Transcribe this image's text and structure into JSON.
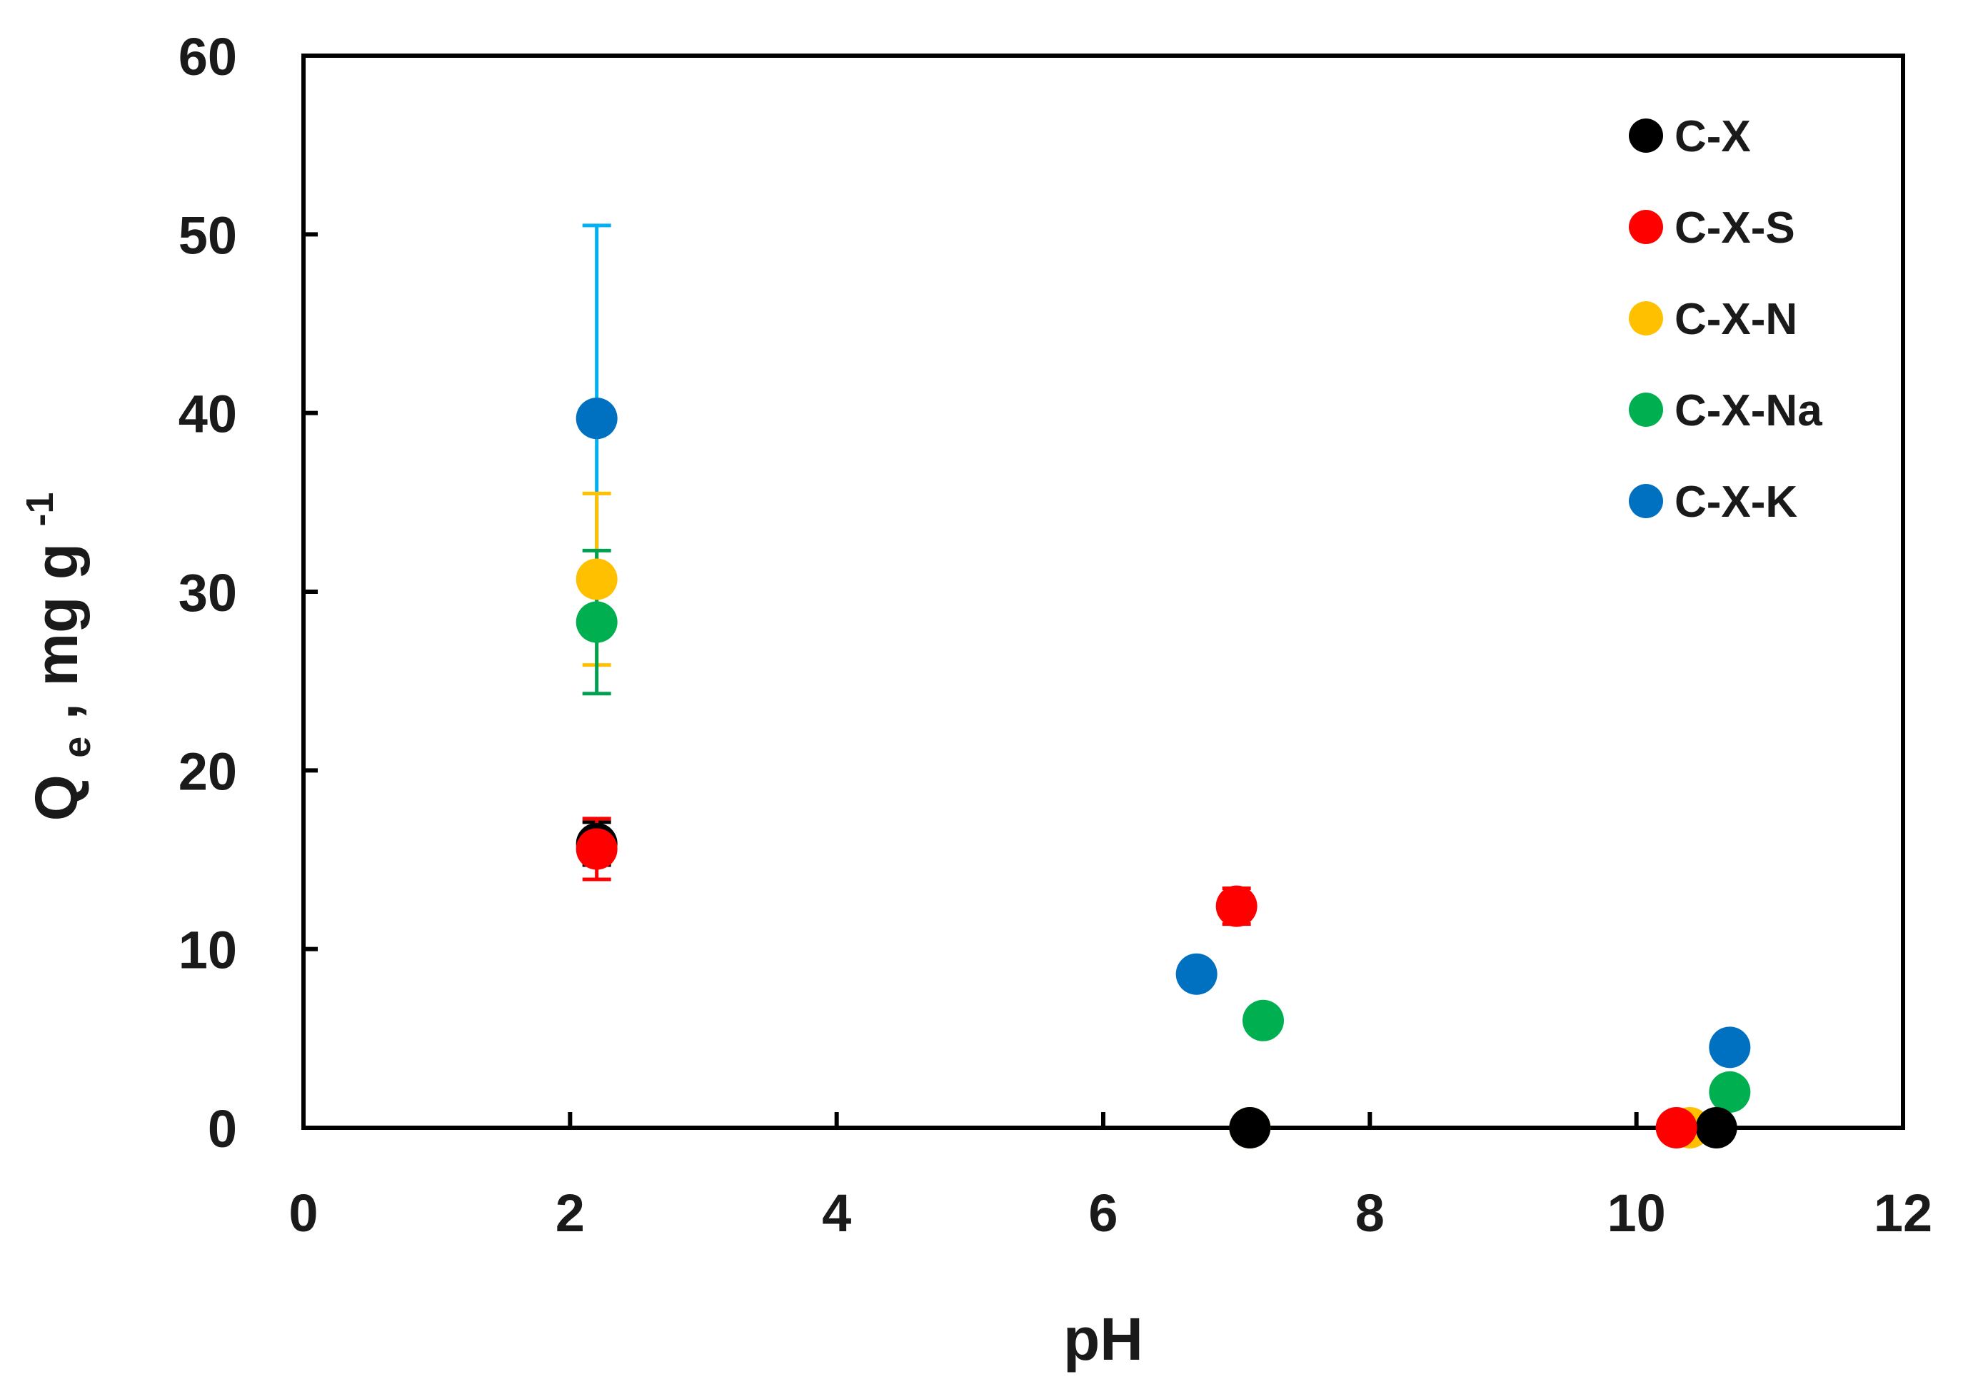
{
  "chart_data": {
    "type": "scatter",
    "title": "",
    "xlabel": "pH",
    "ylabel": {
      "main": "Q",
      "sub": "e",
      "rest": ", mg g",
      "sup": "-1"
    },
    "xlim": [
      0,
      12
    ],
    "ylim": [
      0,
      60
    ],
    "xticks": [
      0,
      2,
      4,
      6,
      8,
      10,
      12
    ],
    "yticks": [
      0,
      10,
      20,
      30,
      40,
      50,
      60
    ],
    "grid": false,
    "legend": {
      "placement": "top-right"
    },
    "series": [
      {
        "name": "C-X",
        "color": "#000000",
        "points": [
          {
            "x": 2.2,
            "y": 15.9,
            "err": 1.2
          },
          {
            "x": 7.1,
            "y": 0.0
          },
          {
            "x": 10.6,
            "y": 0.0
          }
        ]
      },
      {
        "name": "C-X-S",
        "color": "#ff0000",
        "points": [
          {
            "x": 2.2,
            "y": 15.6,
            "err": 1.7
          },
          {
            "x": 7.0,
            "y": 12.4,
            "err": 1.0
          },
          {
            "x": 10.3,
            "y": 0.0
          }
        ]
      },
      {
        "name": "C-X-N",
        "color": "#ffc000",
        "points": [
          {
            "x": 2.2,
            "y": 30.7,
            "err": 4.8
          },
          {
            "x": 7.1,
            "y": 0.0
          },
          {
            "x": 10.4,
            "y": 0.0
          }
        ]
      },
      {
        "name": "C-X-Na",
        "color": "#00b050",
        "errColor": "#00a050",
        "points": [
          {
            "x": 2.2,
            "y": 28.3,
            "err": 4.0
          },
          {
            "x": 7.2,
            "y": 6.0
          },
          {
            "x": 10.7,
            "y": 2.0
          }
        ]
      },
      {
        "name": "C-X-K",
        "color": "#0070c0",
        "errColor": "#00b0f0",
        "points": [
          {
            "x": 2.2,
            "y": 39.7,
            "err": 10.8
          },
          {
            "x": 6.7,
            "y": 8.6
          },
          {
            "x": 10.7,
            "y": 4.5
          }
        ]
      }
    ]
  }
}
